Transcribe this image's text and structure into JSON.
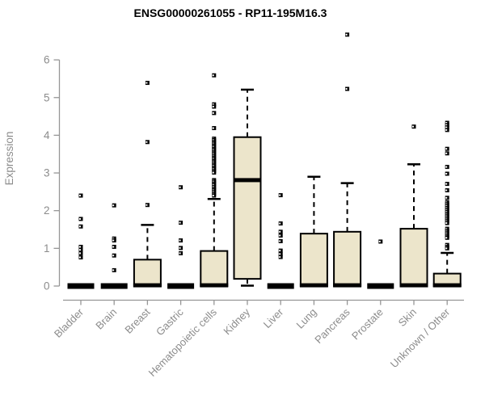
{
  "chart_data": {
    "type": "boxplot",
    "title": "ENSG00000261055 - RP11-195M16.3",
    "ylabel": "Expression",
    "xlabel": "",
    "yticks": [
      0,
      1,
      2,
      3,
      4,
      5,
      6
    ],
    "ylim": [
      0,
      6.8
    ],
    "grid": false,
    "legend": "none",
    "categories": [
      "Bladder",
      "Brain",
      "Breast",
      "Gastric",
      "Hematopoietic cells",
      "Kidney",
      "Liver",
      "Lung",
      "Pancreas",
      "Prostate",
      "Skin",
      "Unknown / Other"
    ],
    "series": [
      {
        "name": "Bladder",
        "q1": 0,
        "median": 0,
        "q3": 0,
        "whisker_low": 0,
        "whisker_high": 0,
        "outliers": [
          2.4,
          1.78,
          1.58,
          1.04,
          0.96,
          0.87,
          0.76
        ]
      },
      {
        "name": "Brain",
        "q1": 0,
        "median": 0,
        "q3": 0,
        "whisker_low": 0,
        "whisker_high": 0,
        "outliers": [
          2.14,
          1.26,
          1.21,
          1.04,
          0.81,
          0.42
        ]
      },
      {
        "name": "Breast",
        "q1": 0,
        "median": 0.02,
        "q3": 0.7,
        "whisker_low": 0,
        "whisker_high": 1.62,
        "outliers": [
          5.39,
          3.82,
          2.15
        ]
      },
      {
        "name": "Gastric",
        "q1": 0,
        "median": 0,
        "q3": 0,
        "whisker_low": 0,
        "whisker_high": 0,
        "outliers": [
          2.62,
          1.68,
          1.21,
          1.01,
          0.87
        ]
      },
      {
        "name": "Hematopoietic cells",
        "q1": 0,
        "median": 0.02,
        "q3": 0.93,
        "whisker_low": 0,
        "whisker_high": 2.31,
        "outliers": [
          5.59,
          4.82,
          4.76,
          4.59,
          4.19,
          3.91,
          3.87,
          3.82,
          3.78,
          3.73,
          3.69,
          3.64,
          3.6,
          3.55,
          3.51,
          3.46,
          3.41,
          3.37,
          3.32,
          3.28,
          3.23,
          3.19,
          3.14,
          3.1,
          3.05,
          3.01,
          2.81,
          2.77,
          2.72,
          2.68,
          2.63,
          2.58,
          2.54,
          2.49,
          2.44,
          2.4
        ]
      },
      {
        "name": "Kidney",
        "q1": 0.19,
        "median": 2.81,
        "q3": 3.95,
        "whisker_low": 0.01,
        "whisker_high": 5.21,
        "outliers": []
      },
      {
        "name": "Liver",
        "q1": 0,
        "median": 0,
        "q3": 0,
        "whisker_low": 0,
        "whisker_high": 0,
        "outliers": [
          2.41,
          1.66,
          1.44,
          1.34,
          1.19,
          0.94,
          0.85,
          0.77
        ]
      },
      {
        "name": "Lung",
        "q1": 0,
        "median": 0.02,
        "q3": 1.39,
        "whisker_low": 0,
        "whisker_high": 2.9,
        "outliers": []
      },
      {
        "name": "Pancreas",
        "q1": 0,
        "median": 0.02,
        "q3": 1.44,
        "whisker_low": 0,
        "whisker_high": 2.73,
        "outliers": [
          6.67,
          5.23
        ]
      },
      {
        "name": "Prostate",
        "q1": 0,
        "median": 0,
        "q3": 0,
        "whisker_low": 0,
        "whisker_high": 0,
        "outliers": [
          1.18
        ]
      },
      {
        "name": "Skin",
        "q1": 0,
        "median": 0.02,
        "q3": 1.52,
        "whisker_low": 0,
        "whisker_high": 3.23,
        "outliers": [
          4.23
        ]
      },
      {
        "name": "Unknown / Other",
        "q1": 0,
        "median": 0.02,
        "q3": 0.33,
        "whisker_low": 0,
        "whisker_high": 0.88,
        "outliers": [
          4.33,
          4.27,
          4.21,
          4.14,
          3.64,
          3.52,
          3.16,
          2.98,
          2.71,
          2.54,
          2.34,
          2.22,
          2.17,
          2.12,
          2.07,
          2.02,
          1.97,
          1.92,
          1.87,
          1.82,
          1.77,
          1.72,
          1.67,
          1.52,
          1.47,
          1.42,
          1.37,
          1.32,
          1.28,
          1.09,
          1.04,
          1.0
        ]
      }
    ],
    "colors": {
      "box_fill": "#ECE5CB",
      "box_border": "#000000",
      "median": "#000000",
      "whisker": "#000000",
      "outlier": "#000000",
      "axis": "#969696",
      "tick_text": "#8c8c8c",
      "title_text": "#000000",
      "background": "#ffffff"
    }
  }
}
